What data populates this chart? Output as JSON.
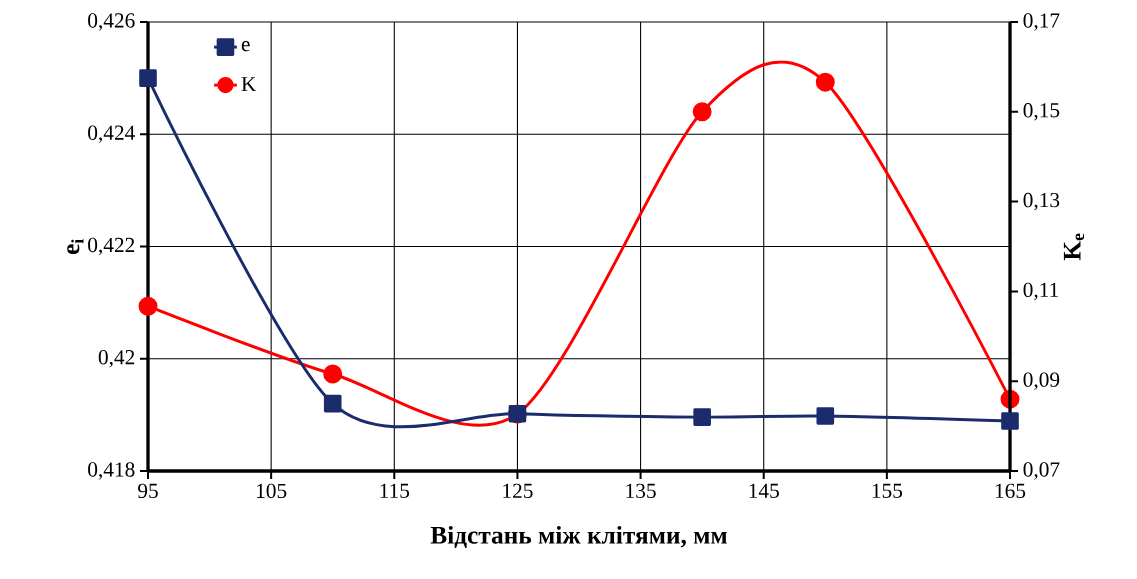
{
  "chart_data": {
    "type": "line",
    "xlabel": "Відстань між клітями, мм",
    "ylabel": "e$_{i}$",
    "y2label": "K$_{e}$",
    "x": [
      95,
      110,
      125,
      140,
      150,
      165
    ],
    "series": [
      {
        "name": "e",
        "color": "#1a2c6b",
        "marker": "square",
        "values": [
          0.425,
          0.4192,
          0.41902,
          0.41896,
          0.41898,
          0.41889
        ]
      },
      {
        "name": "K",
        "color": "#ff0000",
        "marker": "circle",
        "axis": "y2",
        "values": [
          0.1067,
          0.0916,
          0.0827,
          0.15,
          0.1566,
          0.086
        ]
      }
    ],
    "xlim": [
      95,
      165
    ],
    "xticks": [
      95,
      105,
      115,
      125,
      135,
      145,
      155,
      165
    ],
    "ylim": [
      0.418,
      0.426
    ],
    "yticks": [
      {
        "value": 0.418,
        "label": "0,418"
      },
      {
        "value": 0.42,
        "label": "0,42"
      },
      {
        "value": 0.422,
        "label": "0,422"
      },
      {
        "value": 0.424,
        "label": "0,424"
      },
      {
        "value": 0.426,
        "label": "0,426"
      }
    ],
    "y2lim": [
      0.07,
      0.17
    ],
    "y2ticks": [
      {
        "value": 0.07,
        "label": "0,07"
      },
      {
        "value": 0.09,
        "label": "0,09"
      },
      {
        "value": 0.11,
        "label": "0,11"
      },
      {
        "value": 0.13,
        "label": "0,13"
      },
      {
        "value": 0.15,
        "label": "0,15"
      },
      {
        "value": 0.17,
        "label": "0,17"
      }
    ],
    "grid": true,
    "legend": "top left",
    "line_style": "solid"
  }
}
